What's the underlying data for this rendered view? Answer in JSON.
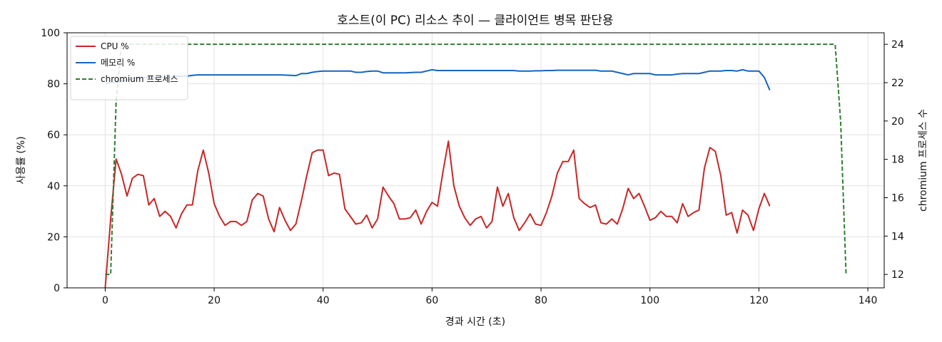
{
  "chart_data": {
    "type": "line",
    "title": "호스트(이 PC) 리소스 추이 — 클라이언트 병목 판단용",
    "xlabel": "경과 시간 (초)",
    "ylabel": "사용률 (%)",
    "y2label": "chromium 프로세스 수",
    "xlim": [
      -7,
      143
    ],
    "ylim": [
      0,
      100
    ],
    "y2lim": [
      11.3,
      24.6
    ],
    "xticks": [
      0,
      20,
      40,
      60,
      80,
      100,
      120,
      140
    ],
    "yticks": [
      0,
      20,
      40,
      60,
      80,
      100
    ],
    "y2ticks": [
      12,
      14,
      16,
      18,
      20,
      22,
      24
    ],
    "grid": true,
    "legend_position": "top-left",
    "series": [
      {
        "name": "CPU %",
        "axis": "left",
        "color": "#c62828",
        "style": "solid",
        "points": [
          [
            0,
            0
          ],
          [
            1,
            27
          ],
          [
            2,
            50.5
          ],
          [
            3,
            44.5
          ],
          [
            4,
            36
          ],
          [
            5,
            43
          ],
          [
            6,
            44.5
          ],
          [
            7,
            44
          ],
          [
            8,
            32.5
          ],
          [
            9,
            35
          ],
          [
            10,
            28
          ],
          [
            11,
            30
          ],
          [
            12,
            28
          ],
          [
            13,
            23.5
          ],
          [
            14,
            29
          ],
          [
            15,
            32.5
          ],
          [
            16,
            32.5
          ],
          [
            17,
            46
          ],
          [
            18,
            54
          ],
          [
            19,
            45
          ],
          [
            20,
            33
          ],
          [
            21,
            28
          ],
          [
            22,
            24.5
          ],
          [
            23,
            26
          ],
          [
            24,
            26
          ],
          [
            25,
            24.5
          ],
          [
            26,
            26
          ],
          [
            27,
            34.5
          ],
          [
            28,
            37
          ],
          [
            29,
            36
          ],
          [
            30,
            27
          ],
          [
            31,
            22
          ],
          [
            32,
            31.5
          ],
          [
            33,
            26.5
          ],
          [
            34,
            22.5
          ],
          [
            35,
            25
          ],
          [
            36,
            34
          ],
          [
            37,
            44
          ],
          [
            38,
            53
          ],
          [
            39,
            54
          ],
          [
            40,
            54
          ],
          [
            41,
            44
          ],
          [
            42,
            45
          ],
          [
            43,
            44.5
          ],
          [
            44,
            31
          ],
          [
            45,
            28
          ],
          [
            46,
            25
          ],
          [
            47,
            25.5
          ],
          [
            48,
            28.5
          ],
          [
            49,
            23.5
          ],
          [
            50,
            27
          ],
          [
            51,
            39.5
          ],
          [
            52,
            36
          ],
          [
            53,
            33
          ],
          [
            54,
            27
          ],
          [
            55,
            27
          ],
          [
            56,
            27.5
          ],
          [
            57,
            30.5
          ],
          [
            58,
            25
          ],
          [
            59,
            30
          ],
          [
            60,
            33.5
          ],
          [
            61,
            32
          ],
          [
            62,
            45.5
          ],
          [
            63,
            57.5
          ],
          [
            64,
            40
          ],
          [
            65,
            32
          ],
          [
            66,
            27.5
          ],
          [
            67,
            24.5
          ],
          [
            68,
            27
          ],
          [
            69,
            28
          ],
          [
            70,
            23.5
          ],
          [
            71,
            26
          ],
          [
            72,
            39.5
          ],
          [
            73,
            32
          ],
          [
            74,
            37
          ],
          [
            75,
            27.5
          ],
          [
            76,
            22.5
          ],
          [
            77,
            25.5
          ],
          [
            78,
            29
          ],
          [
            79,
            25
          ],
          [
            80,
            24.5
          ],
          [
            81,
            29.5
          ],
          [
            82,
            36
          ],
          [
            83,
            45
          ],
          [
            84,
            49.5
          ],
          [
            85,
            49.5
          ],
          [
            86,
            54
          ],
          [
            87,
            35
          ],
          [
            88,
            33
          ],
          [
            89,
            31.5
          ],
          [
            90,
            32.5
          ],
          [
            91,
            25.5
          ],
          [
            92,
            25
          ],
          [
            93,
            27
          ],
          [
            94,
            25
          ],
          [
            95,
            31
          ],
          [
            96,
            39
          ],
          [
            97,
            35
          ],
          [
            98,
            37
          ],
          [
            99,
            32
          ],
          [
            100,
            26.5
          ],
          [
            101,
            27.5
          ],
          [
            102,
            30
          ],
          [
            103,
            28
          ],
          [
            104,
            28
          ],
          [
            105,
            25.5
          ],
          [
            106,
            33
          ],
          [
            107,
            28
          ],
          [
            108,
            29.5
          ],
          [
            109,
            30.5
          ],
          [
            110,
            47
          ],
          [
            111,
            55
          ],
          [
            112,
            53.5
          ],
          [
            113,
            44
          ],
          [
            114,
            28.5
          ],
          [
            115,
            29.5
          ],
          [
            116,
            21.5
          ],
          [
            117,
            30.5
          ],
          [
            118,
            28.5
          ],
          [
            119,
            22.5
          ],
          [
            120,
            31
          ],
          [
            121,
            37
          ],
          [
            122,
            32
          ]
        ]
      },
      {
        "name": "메모리 %",
        "axis": "left",
        "color": "#1565c0",
        "style": "solid",
        "points": [
          [
            0,
            80
          ],
          [
            1,
            80.5
          ],
          [
            2,
            80.5
          ],
          [
            3,
            81
          ],
          [
            4,
            81.5
          ],
          [
            5,
            82
          ],
          [
            6,
            82.5
          ],
          [
            7,
            82.5
          ],
          [
            8,
            82.5
          ],
          [
            9,
            82.5
          ],
          [
            10,
            82.5
          ],
          [
            11,
            82.5
          ],
          [
            12,
            82.5
          ],
          [
            13,
            83
          ],
          [
            14,
            83
          ],
          [
            15,
            83
          ],
          [
            16,
            83.3
          ],
          [
            17,
            83.5
          ],
          [
            18,
            83.5
          ],
          [
            19,
            83.5
          ],
          [
            20,
            83.5
          ],
          [
            21,
            83.5
          ],
          [
            22,
            83.5
          ],
          [
            23,
            83.5
          ],
          [
            24,
            83.5
          ],
          [
            25,
            83.5
          ],
          [
            26,
            83.5
          ],
          [
            27,
            83.5
          ],
          [
            28,
            83.5
          ],
          [
            29,
            83.5
          ],
          [
            30,
            83.5
          ],
          [
            31,
            83.5
          ],
          [
            32,
            83.5
          ],
          [
            33,
            83.4
          ],
          [
            34,
            83.3
          ],
          [
            35,
            83.2
          ],
          [
            36,
            84
          ],
          [
            37,
            84
          ],
          [
            38,
            84.5
          ],
          [
            39,
            84.8
          ],
          [
            40,
            85
          ],
          [
            41,
            85
          ],
          [
            42,
            85
          ],
          [
            43,
            85
          ],
          [
            44,
            85
          ],
          [
            45,
            85
          ],
          [
            46,
            84.5
          ],
          [
            47,
            84.5
          ],
          [
            48,
            84.8
          ],
          [
            49,
            85
          ],
          [
            50,
            85
          ],
          [
            51,
            84.3
          ],
          [
            52,
            84.3
          ],
          [
            53,
            84.3
          ],
          [
            54,
            84.3
          ],
          [
            55,
            84.3
          ],
          [
            56,
            84.4
          ],
          [
            57,
            84.5
          ],
          [
            58,
            84.5
          ],
          [
            59,
            85
          ],
          [
            60,
            85.5
          ],
          [
            61,
            85.2
          ],
          [
            62,
            85.2
          ],
          [
            63,
            85.2
          ],
          [
            64,
            85.2
          ],
          [
            65,
            85.2
          ],
          [
            66,
            85.2
          ],
          [
            67,
            85.2
          ],
          [
            68,
            85.2
          ],
          [
            69,
            85.2
          ],
          [
            70,
            85.2
          ],
          [
            71,
            85.2
          ],
          [
            72,
            85.2
          ],
          [
            73,
            85.2
          ],
          [
            74,
            85.2
          ],
          [
            75,
            85.2
          ],
          [
            76,
            85
          ],
          [
            77,
            85
          ],
          [
            78,
            85
          ],
          [
            79,
            85.1
          ],
          [
            80,
            85.1
          ],
          [
            81,
            85.2
          ],
          [
            82,
            85.2
          ],
          [
            83,
            85.3
          ],
          [
            84,
            85.3
          ],
          [
            85,
            85.3
          ],
          [
            86,
            85.3
          ],
          [
            87,
            85.3
          ],
          [
            88,
            85.3
          ],
          [
            89,
            85.3
          ],
          [
            90,
            85.3
          ],
          [
            91,
            85
          ],
          [
            92,
            85
          ],
          [
            93,
            85
          ],
          [
            94,
            84.5
          ],
          [
            95,
            84
          ],
          [
            96,
            83.5
          ],
          [
            97,
            84
          ],
          [
            98,
            84
          ],
          [
            99,
            84
          ],
          [
            100,
            84
          ],
          [
            101,
            83.5
          ],
          [
            102,
            83.5
          ],
          [
            103,
            83.5
          ],
          [
            104,
            83.5
          ],
          [
            105,
            83.8
          ],
          [
            106,
            84
          ],
          [
            107,
            84
          ],
          [
            108,
            84
          ],
          [
            109,
            84
          ],
          [
            110,
            84.5
          ],
          [
            111,
            85
          ],
          [
            112,
            85
          ],
          [
            113,
            85
          ],
          [
            114,
            85.2
          ],
          [
            115,
            85.2
          ],
          [
            116,
            85
          ],
          [
            117,
            85.5
          ],
          [
            118,
            85
          ],
          [
            119,
            85
          ],
          [
            120,
            85
          ],
          [
            121,
            82.5
          ],
          [
            122,
            77.5
          ]
        ]
      },
      {
        "name": "chromium 프로세스",
        "axis": "right",
        "color": "#2e7d32",
        "style": "dashed",
        "points": [
          [
            0,
            12
          ],
          [
            1,
            12
          ],
          [
            2,
            21
          ],
          [
            3,
            24
          ],
          [
            4,
            24
          ],
          [
            133,
            24
          ],
          [
            134,
            24
          ],
          [
            135,
            20
          ],
          [
            136,
            12
          ]
        ]
      }
    ]
  }
}
